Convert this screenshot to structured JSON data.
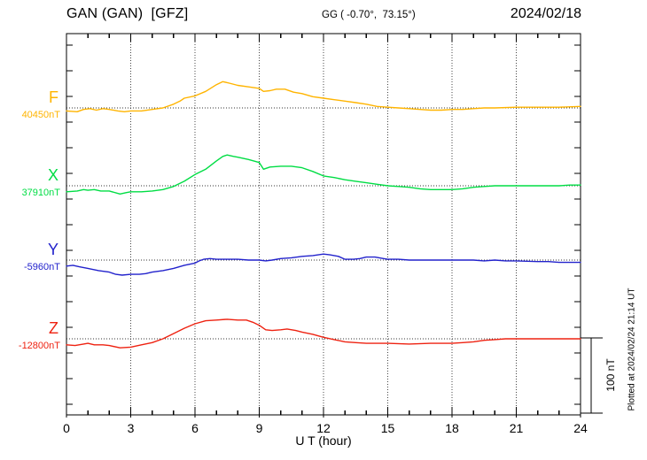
{
  "header": {
    "station": "GAN (GAN)  [GFZ]",
    "coordinates": "GG ( -0.70°,  73.15°)",
    "date": "2024/02/18"
  },
  "x_axis": {
    "label": "U T (hour)",
    "tick_labels": [
      "0",
      "3",
      "6",
      "9",
      "12",
      "15",
      "18",
      "21",
      "24"
    ]
  },
  "scale_bar": {
    "label": "100 nT"
  },
  "footer_note": "Plotted at 2024/02/24 21:14 UT",
  "chart_data": {
    "type": "line",
    "title": "GAN (GAN) [GFZ] magnetogram for 2024/02/18",
    "xlabel": "U T (hour)",
    "x_range_hours": [
      0,
      24
    ],
    "x_major_tick_step_hours": 3,
    "x_minor_tick_step_hours": 1,
    "scale_bar_nT": 100,
    "grid": "dotted vertical lines every 3 h; dotted horizontal baseline per component",
    "legend_position": "left margin, one colored label per component",
    "series": [
      {
        "id": "F",
        "label": "F",
        "baseline_label": "40450nT",
        "baseline_nT": 40450,
        "color": "#ffb400",
        "points_hour_offset_nT": [
          [
            0,
            -4
          ],
          [
            0.5,
            -5
          ],
          [
            0.8,
            -2
          ],
          [
            1.1,
            -1
          ],
          [
            1.4,
            -3
          ],
          [
            1.7,
            -1
          ],
          [
            2,
            -2
          ],
          [
            2.4,
            -4
          ],
          [
            2.7,
            -5
          ],
          [
            3,
            -4
          ],
          [
            3.5,
            -4
          ],
          [
            4,
            -2
          ],
          [
            4.5,
            0
          ],
          [
            5,
            5
          ],
          [
            5.3,
            9
          ],
          [
            5.5,
            13
          ],
          [
            6,
            16
          ],
          [
            6.5,
            22
          ],
          [
            7,
            31
          ],
          [
            7.3,
            35
          ],
          [
            7.6,
            33
          ],
          [
            8,
            30
          ],
          [
            8.5,
            28
          ],
          [
            9,
            26
          ],
          [
            9.2,
            22
          ],
          [
            9.5,
            23
          ],
          [
            9.8,
            25
          ],
          [
            10.2,
            25
          ],
          [
            10.6,
            21
          ],
          [
            11,
            19
          ],
          [
            11.5,
            15
          ],
          [
            12,
            13
          ],
          [
            12.5,
            11
          ],
          [
            13,
            9
          ],
          [
            13.5,
            7
          ],
          [
            14,
            5
          ],
          [
            14.5,
            2
          ],
          [
            15,
            1
          ],
          [
            15.5,
            0
          ],
          [
            16,
            -1
          ],
          [
            16.5,
            -2
          ],
          [
            17,
            -3
          ],
          [
            17.5,
            -3
          ],
          [
            18,
            -2
          ],
          [
            18.5,
            -2
          ],
          [
            19,
            -1
          ],
          [
            19.5,
            0
          ],
          [
            20,
            0
          ],
          [
            21,
            1
          ],
          [
            22,
            1
          ],
          [
            23,
            1
          ],
          [
            24,
            2
          ]
        ]
      },
      {
        "id": "X",
        "label": "X",
        "baseline_label": "37910nT",
        "baseline_nT": 37910,
        "color": "#00dd44",
        "points_hour_offset_nT": [
          [
            0,
            -8
          ],
          [
            0.5,
            -7
          ],
          [
            0.8,
            -5
          ],
          [
            1,
            -6
          ],
          [
            1.3,
            -5
          ],
          [
            1.6,
            -7
          ],
          [
            2,
            -7
          ],
          [
            2.5,
            -11
          ],
          [
            2.8,
            -9
          ],
          [
            3,
            -8
          ],
          [
            3.5,
            -8
          ],
          [
            4,
            -7
          ],
          [
            4.5,
            -5
          ],
          [
            5,
            -1
          ],
          [
            5.5,
            6
          ],
          [
            6,
            15
          ],
          [
            6.5,
            22
          ],
          [
            7,
            33
          ],
          [
            7.3,
            39
          ],
          [
            7.5,
            41
          ],
          [
            7.8,
            39
          ],
          [
            8,
            38
          ],
          [
            8.5,
            35
          ],
          [
            9,
            31
          ],
          [
            9.2,
            22
          ],
          [
            9.5,
            25
          ],
          [
            10,
            26
          ],
          [
            10.5,
            26
          ],
          [
            11,
            24
          ],
          [
            11.5,
            19
          ],
          [
            12,
            13
          ],
          [
            12.5,
            11
          ],
          [
            13,
            8
          ],
          [
            13.5,
            6
          ],
          [
            14,
            4
          ],
          [
            14.5,
            2
          ],
          [
            15,
            0
          ],
          [
            15.5,
            -1
          ],
          [
            16,
            -2
          ],
          [
            16.5,
            -4
          ],
          [
            17,
            -5
          ],
          [
            17.5,
            -5
          ],
          [
            18,
            -5
          ],
          [
            18.5,
            -4
          ],
          [
            19,
            -2
          ],
          [
            19.5,
            -1
          ],
          [
            20,
            0
          ],
          [
            21,
            0
          ],
          [
            22,
            0
          ],
          [
            23,
            0
          ],
          [
            23.5,
            1
          ],
          [
            24,
            1
          ]
        ]
      },
      {
        "id": "Y",
        "label": "Y",
        "baseline_label": "-5960nT",
        "baseline_nT": -5960,
        "color": "#2222cc",
        "points_hour_offset_nT": [
          [
            0,
            -8
          ],
          [
            0.3,
            -7
          ],
          [
            0.6,
            -9
          ],
          [
            1,
            -11
          ],
          [
            1.5,
            -14
          ],
          [
            2,
            -16
          ],
          [
            2.3,
            -19
          ],
          [
            2.6,
            -20
          ],
          [
            3,
            -19
          ],
          [
            3.4,
            -19
          ],
          [
            3.7,
            -18
          ],
          [
            4,
            -16
          ],
          [
            4.5,
            -14
          ],
          [
            5,
            -11
          ],
          [
            5.5,
            -7
          ],
          [
            6,
            -4
          ],
          [
            6.2,
            -1
          ],
          [
            6.4,
            1
          ],
          [
            6.7,
            2
          ],
          [
            7,
            1
          ],
          [
            7.5,
            1
          ],
          [
            8,
            1
          ],
          [
            8.5,
            0
          ],
          [
            9,
            0
          ],
          [
            9.3,
            -1
          ],
          [
            9.6,
            0
          ],
          [
            10,
            2
          ],
          [
            10.5,
            3
          ],
          [
            11,
            5
          ],
          [
            11.5,
            6
          ],
          [
            12,
            8
          ],
          [
            12.3,
            7
          ],
          [
            12.7,
            5
          ],
          [
            13,
            1
          ],
          [
            13.4,
            1
          ],
          [
            13.7,
            2
          ],
          [
            14,
            4
          ],
          [
            14.4,
            4
          ],
          [
            14.8,
            2
          ],
          [
            15,
            1
          ],
          [
            15.5,
            1
          ],
          [
            16,
            0
          ],
          [
            17,
            0
          ],
          [
            18,
            0
          ],
          [
            19,
            0
          ],
          [
            19.5,
            -1
          ],
          [
            20,
            0
          ],
          [
            20.5,
            -1
          ],
          [
            21,
            -1
          ],
          [
            22,
            -2
          ],
          [
            22.5,
            -2
          ],
          [
            23,
            -3
          ],
          [
            23.5,
            -3
          ],
          [
            24,
            -3
          ]
        ]
      },
      {
        "id": "Z",
        "label": "Z",
        "baseline_label": "-12800nT",
        "baseline_nT": -12800,
        "color": "#ee2211",
        "points_hour_offset_nT": [
          [
            0,
            -8
          ],
          [
            0.4,
            -9
          ],
          [
            0.8,
            -7
          ],
          [
            1,
            -6
          ],
          [
            1.3,
            -8
          ],
          [
            1.7,
            -8
          ],
          [
            2,
            -9
          ],
          [
            2.5,
            -12
          ],
          [
            3,
            -11
          ],
          [
            3.5,
            -8
          ],
          [
            4,
            -5
          ],
          [
            4.5,
            0
          ],
          [
            5,
            7
          ],
          [
            5.5,
            14
          ],
          [
            6,
            20
          ],
          [
            6.5,
            24
          ],
          [
            7,
            25
          ],
          [
            7.5,
            26
          ],
          [
            8,
            25
          ],
          [
            8.4,
            25
          ],
          [
            8.7,
            22
          ],
          [
            9,
            18
          ],
          [
            9.3,
            12
          ],
          [
            9.6,
            11
          ],
          [
            10,
            12
          ],
          [
            10.3,
            13
          ],
          [
            10.7,
            11
          ],
          [
            11,
            9
          ],
          [
            11.5,
            6
          ],
          [
            12,
            2
          ],
          [
            12.5,
            -1
          ],
          [
            13,
            -4
          ],
          [
            13.5,
            -5
          ],
          [
            14,
            -6
          ],
          [
            15,
            -6
          ],
          [
            16,
            -7
          ],
          [
            17,
            -6
          ],
          [
            18,
            -6
          ],
          [
            18.5,
            -5
          ],
          [
            19,
            -4
          ],
          [
            19.5,
            -2
          ],
          [
            20,
            -1
          ],
          [
            20.5,
            0
          ],
          [
            21,
            0
          ],
          [
            22,
            0
          ],
          [
            23,
            0
          ],
          [
            24,
            0
          ]
        ]
      }
    ]
  }
}
